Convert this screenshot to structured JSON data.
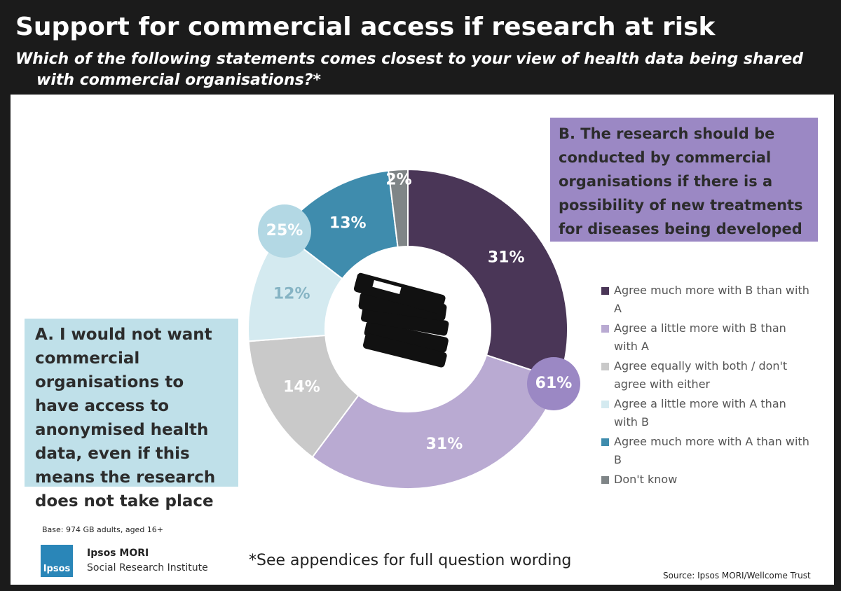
{
  "header": {
    "title": "Support for commercial access if research at risk",
    "subtitle": "Which of the following statements comes closest to your view of health data being shared with commercial organisations?*"
  },
  "chart_data": {
    "type": "donut",
    "categories": [
      "Agree much more with B than with A",
      "Agree a little more with B than with A",
      "Agree equally with both / don't agree with either",
      "Agree a little more with A than with B",
      "Agree much more with A than with B",
      "Don't know"
    ],
    "values": [
      31,
      31,
      14,
      12,
      13,
      2
    ],
    "value_labels": [
      "31%",
      "31%",
      "14%",
      "12%",
      "13%",
      "2%"
    ],
    "colors": [
      "#4a3657",
      "#b9aad2",
      "#c9c9c9",
      "#d4eaf0",
      "#3f8cad",
      "#7f8587"
    ],
    "label_colors": [
      "#ffffff",
      "#ffffff",
      "#ffffff",
      "#86b4c4",
      "#ffffff",
      "#ffffff"
    ],
    "callouts": [
      {
        "value": 61,
        "label": "61%",
        "color": "#9b88c4"
      },
      {
        "value": 25,
        "label": "25%",
        "color": "#b3d8e4"
      }
    ],
    "legend": true
  },
  "statements": {
    "a": "A. I would not want commercial organisations to have access to anonymised health data, even if this means the research does not take place",
    "b": "B. The research should be conducted by commercial organisations if there is a possibility of new treatments for diseases being developed"
  },
  "footer": {
    "base": "Base: 974 GB adults, aged 16+",
    "logo": "Ipsos",
    "org": "Ipsos MORI",
    "org_sub": "Social Research Institute",
    "note": "*See appendices for full question wording",
    "source": "Source:  Ipsos MORI/Wellcome Trust"
  }
}
